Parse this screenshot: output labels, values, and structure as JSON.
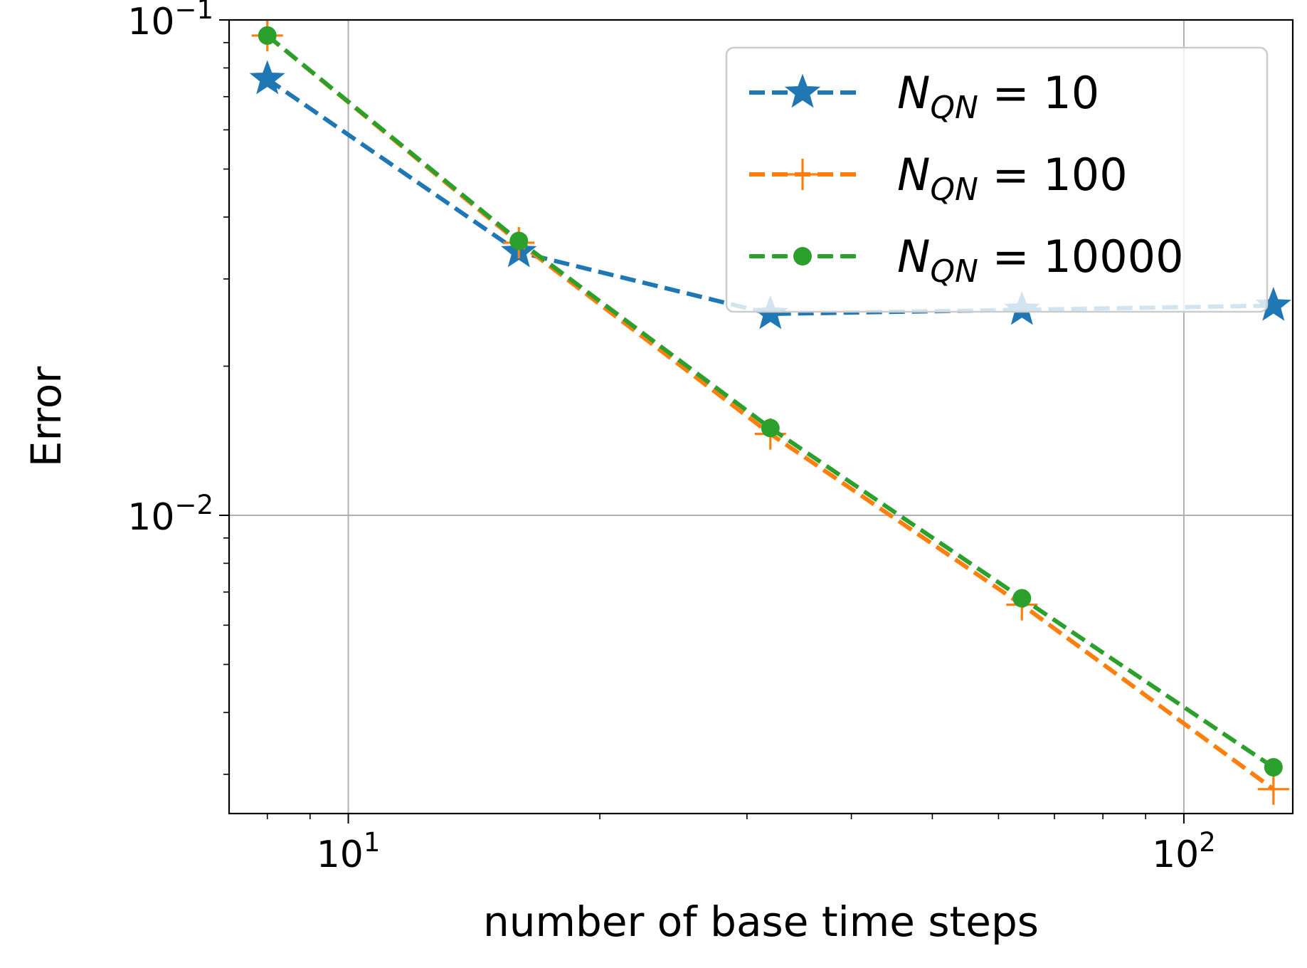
{
  "chart_data": {
    "type": "line",
    "xscale": "log",
    "yscale": "log",
    "xlabel": "number of base time steps",
    "ylabel": "Error",
    "xlim": [
      7.2,
      135
    ],
    "ylim": [
      0.0025,
      0.1
    ],
    "grid": true,
    "legend_position": "top-right",
    "x_ticks": [
      {
        "value": 10,
        "base": "10",
        "exp": "1"
      },
      {
        "value": 100,
        "base": "10",
        "exp": "2"
      }
    ],
    "y_ticks": [
      {
        "value": 0.1,
        "base": "10",
        "exp": "−1"
      },
      {
        "value": 0.01,
        "base": "10",
        "exp": "−2"
      }
    ],
    "x": [
      8,
      16,
      32,
      64,
      128
    ],
    "series": [
      {
        "name_main": "N",
        "name_sub": "QN",
        "name_rest": " = 10",
        "color": "#1f77b4",
        "marker": "star",
        "values": [
          0.076,
          0.034,
          0.0255,
          0.026,
          0.0265
        ]
      },
      {
        "name_main": "N",
        "name_sub": "QN",
        "name_rest": " = 100",
        "color": "#ff7f0e",
        "marker": "plus",
        "values": [
          0.093,
          0.0355,
          0.0146,
          0.0066,
          0.0028
        ]
      },
      {
        "name_main": "N",
        "name_sub": "QN",
        "name_rest": " = 10000",
        "color": "#2ca02c",
        "marker": "circle",
        "values": [
          0.093,
          0.0358,
          0.015,
          0.0068,
          0.0031
        ]
      }
    ]
  }
}
